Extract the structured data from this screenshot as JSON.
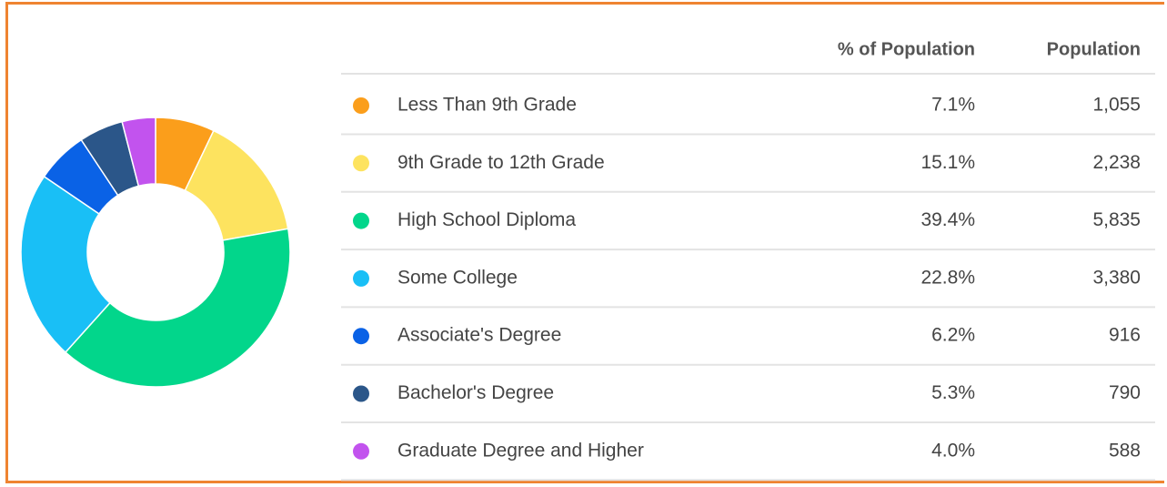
{
  "chart_data": {
    "type": "donut",
    "columns": [
      "% of Population",
      "Population"
    ],
    "categories": [
      "Less Than 9th Grade",
      "9th Grade to 12th Grade",
      "High School Diploma",
      "Some College",
      "Associate's Degree",
      "Bachelor's Degree",
      "Graduate Degree and Higher"
    ],
    "values": [
      7.1,
      15.1,
      39.4,
      22.8,
      6.2,
      5.3,
      4.0
    ],
    "value_labels": [
      "7.1%",
      "15.1%",
      "39.4%",
      "22.8%",
      "6.2%",
      "5.3%",
      "4.0%"
    ],
    "populations": [
      "1,055",
      "2,238",
      "5,835",
      "3,380",
      "916",
      "790",
      "588"
    ],
    "colors": [
      "#fb9e1b",
      "#fde35f",
      "#02d68b",
      "#19bff6",
      "#0a62e6",
      "#2b5689",
      "#c253ee"
    ]
  }
}
